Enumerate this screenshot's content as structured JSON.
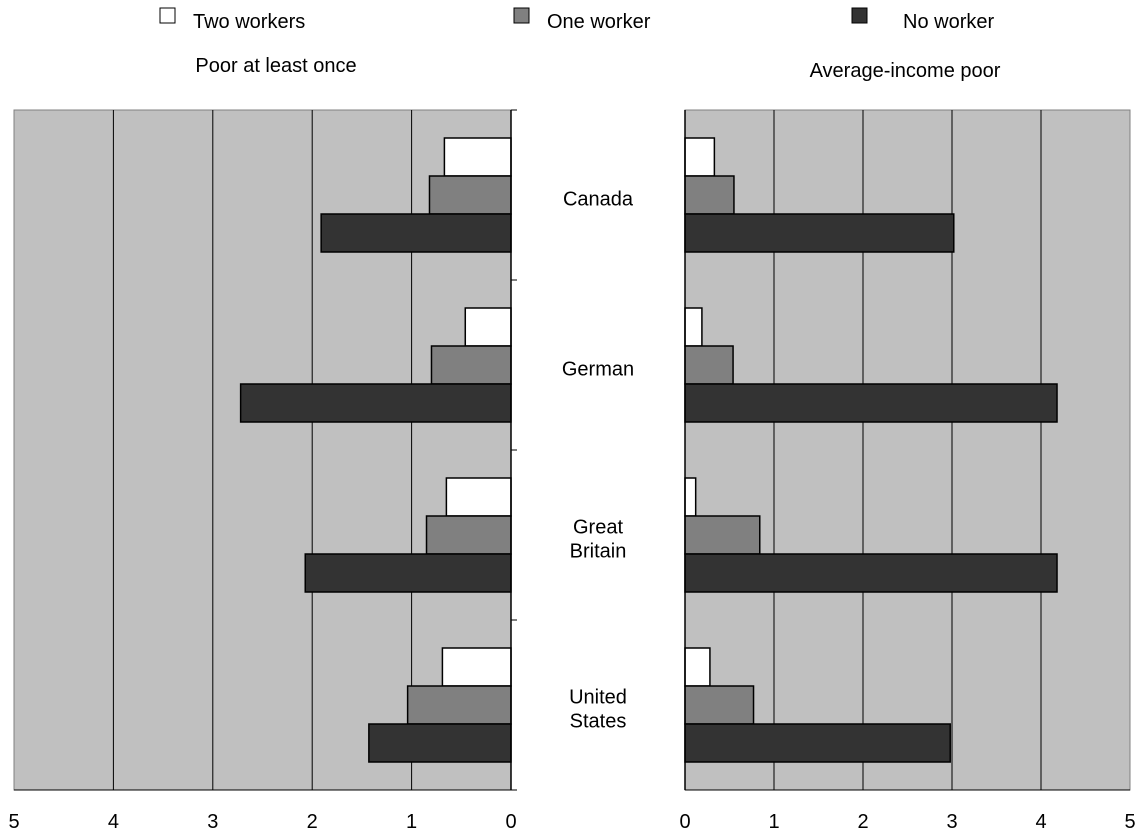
{
  "chart_data": [
    {
      "type": "bar",
      "orientation": "horizontal",
      "direction": "reversed",
      "title": "Poor at least once",
      "categories": [
        "Canada",
        "German",
        "Great Britain",
        "United States"
      ],
      "xlim": [
        0,
        5
      ],
      "xticks": [
        "5",
        "4",
        "3",
        "2",
        "1",
        "0"
      ],
      "grid": true,
      "series": [
        {
          "name": "Two workers",
          "values": [
            0.67,
            0.46,
            0.65,
            0.69
          ]
        },
        {
          "name": "One worker",
          "values": [
            0.82,
            0.8,
            0.85,
            1.04
          ]
        },
        {
          "name": "No worker",
          "values": [
            1.91,
            2.72,
            2.07,
            1.43
          ]
        }
      ]
    },
    {
      "type": "bar",
      "orientation": "horizontal",
      "title": "Average-income poor",
      "categories": [
        "Canada",
        "German",
        "Great Britain",
        "United States"
      ],
      "xlim": [
        0,
        5
      ],
      "xticks": [
        "0",
        "1",
        "2",
        "3",
        "4",
        "5"
      ],
      "grid": true,
      "series": [
        {
          "name": "Two workers",
          "values": [
            0.33,
            0.19,
            0.12,
            0.28
          ]
        },
        {
          "name": "One worker",
          "values": [
            0.55,
            0.54,
            0.84,
            0.77
          ]
        },
        {
          "name": "No worker",
          "values": [
            3.02,
            4.18,
            4.18,
            2.98
          ]
        }
      ]
    }
  ],
  "legend": {
    "placement": "top",
    "items": [
      {
        "label": "Two workers",
        "color": "#ffffff"
      },
      {
        "label": "One worker",
        "color": "#808080"
      },
      {
        "label": "No worker",
        "color": "#333333"
      }
    ]
  },
  "center_labels": [
    [
      "Canada"
    ],
    [
      "German"
    ],
    [
      "Great",
      "Britain"
    ],
    [
      "United",
      "States"
    ]
  ],
  "colors": {
    "plot_background": "#c0c0c0",
    "gridline": "#000000",
    "two_workers": "#ffffff",
    "one_worker": "#808080",
    "no_worker": "#333333"
  }
}
